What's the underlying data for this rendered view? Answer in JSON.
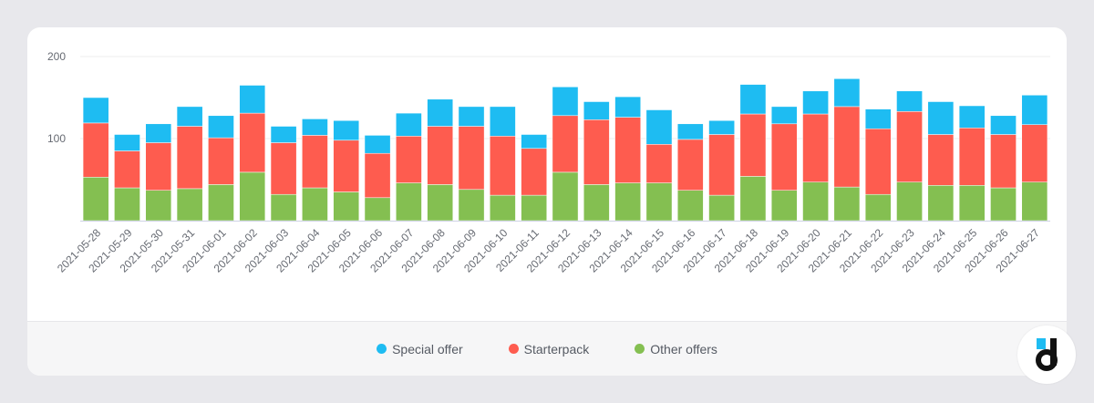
{
  "chart_data": {
    "type": "bar",
    "stacked": true,
    "title": "",
    "xlabel": "",
    "ylabel": "",
    "ylim": [
      0,
      200
    ],
    "yticks": [
      100,
      200
    ],
    "grid": true,
    "legend_position": "bottom",
    "categories": [
      "2021-05-28",
      "2021-05-29",
      "2021-05-30",
      "2021-05-31",
      "2021-06-01",
      "2021-06-02",
      "2021-06-03",
      "2021-06-04",
      "2021-06-05",
      "2021-06-06",
      "2021-06-07",
      "2021-06-08",
      "2021-06-09",
      "2021-06-10",
      "2021-06-11",
      "2021-06-12",
      "2021-06-13",
      "2021-06-14",
      "2021-06-15",
      "2021-06-16",
      "2021-06-17",
      "2021-06-18",
      "2021-06-19",
      "2021-06-20",
      "2021-06-21",
      "2021-06-22",
      "2021-06-23",
      "2021-06-24",
      "2021-06-25",
      "2021-06-26",
      "2021-06-27"
    ],
    "series": [
      {
        "name": "Other offers",
        "color": "#84bf51",
        "values": [
          53,
          40,
          37,
          39,
          44,
          59,
          32,
          40,
          35,
          28,
          46,
          44,
          38,
          31,
          31,
          59,
          44,
          46,
          46,
          37,
          31,
          54,
          37,
          47,
          41,
          32,
          47,
          43,
          43,
          40,
          47
        ]
      },
      {
        "name": "Starterpack",
        "color": "#fe5c4f",
        "values": [
          66,
          45,
          58,
          76,
          57,
          72,
          63,
          64,
          63,
          54,
          57,
          71,
          77,
          72,
          57,
          69,
          79,
          80,
          47,
          62,
          74,
          76,
          81,
          83,
          98,
          80,
          86,
          62,
          70,
          65,
          70
        ]
      },
      {
        "name": "Special offer",
        "color": "#1ebcf2",
        "values": [
          31,
          20,
          23,
          24,
          27,
          34,
          20,
          20,
          24,
          22,
          28,
          33,
          24,
          36,
          17,
          35,
          22,
          25,
          42,
          19,
          17,
          36,
          21,
          28,
          34,
          24,
          25,
          40,
          27,
          23,
          36
        ]
      }
    ]
  },
  "legend": {
    "items": [
      {
        "label": "Special offer",
        "color": "#1ebcf2"
      },
      {
        "label": "Starterpack",
        "color": "#fe5c4f"
      },
      {
        "label": "Other offers",
        "color": "#84bf51"
      }
    ]
  },
  "logo": {
    "icon": "devtodev-logo-icon",
    "letter": "d"
  }
}
